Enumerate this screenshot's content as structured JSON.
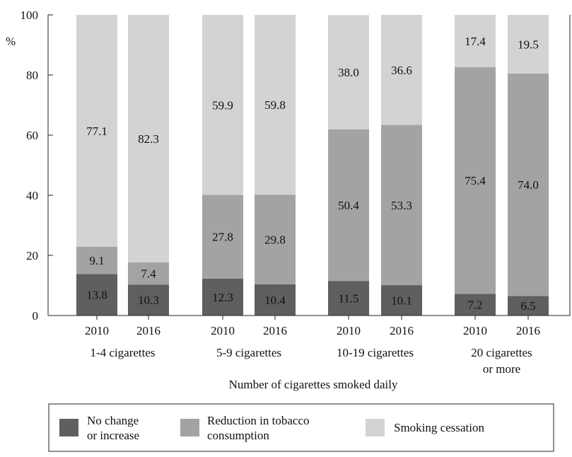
{
  "chart_data": {
    "type": "bar",
    "stacked": true,
    "ylabel": "%",
    "xlabel": "Number of cigarettes smoked daily",
    "ylim": [
      0,
      100
    ],
    "yticks": [
      0,
      20,
      40,
      60,
      80,
      100
    ],
    "grid": false,
    "groups": [
      {
        "label": [
          "1-4 cigarettes"
        ],
        "years": [
          "2010",
          "2016"
        ]
      },
      {
        "label": [
          "5-9 cigarettes"
        ],
        "years": [
          "2010",
          "2016"
        ]
      },
      {
        "label": [
          "10-19 cigarettes"
        ],
        "years": [
          "2010",
          "2016"
        ]
      },
      {
        "label": [
          "20 cigarettes",
          "or more"
        ],
        "years": [
          "2010",
          "2016"
        ]
      }
    ],
    "series": [
      {
        "name": [
          "No change",
          "or increase"
        ],
        "color": "#5f5f5f",
        "values": [
          13.8,
          10.3,
          12.3,
          10.4,
          11.5,
          10.1,
          7.2,
          6.5
        ],
        "labels": [
          "13.8",
          "10.3",
          "12.3",
          "10.4",
          "11.5",
          "10.1",
          "7.2",
          "6.5"
        ]
      },
      {
        "name": [
          "Reduction in tobacco",
          "consumption"
        ],
        "color": "#a3a3a3",
        "values": [
          9.1,
          7.4,
          27.8,
          29.8,
          50.4,
          53.3,
          75.4,
          74.0
        ],
        "labels": [
          "9.1",
          "7.4",
          "27.8",
          "29.8",
          "50.4",
          "53.3",
          "75.4",
          "74.0"
        ]
      },
      {
        "name": [
          "Smoking cessation"
        ],
        "color": "#d3d3d3",
        "values": [
          77.1,
          82.3,
          59.9,
          59.8,
          38.0,
          36.6,
          17.4,
          19.5
        ],
        "labels": [
          "77.1",
          "82.3",
          "59.9",
          "59.8",
          "38.0",
          "36.6",
          "17.4",
          "19.5"
        ]
      }
    ],
    "legend": {
      "placement": "bottom"
    }
  }
}
